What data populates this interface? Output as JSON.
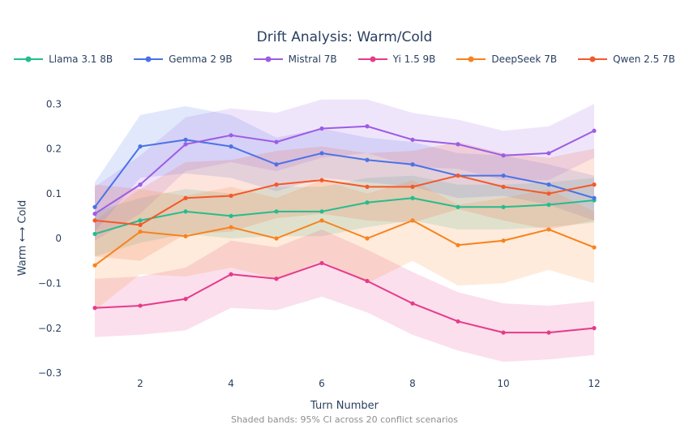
{
  "colors": {
    "text": "#2a3f5f",
    "note_text": "#8e8e93",
    "background": "#ffffff"
  },
  "chart_data": {
    "type": "line",
    "title": "Drift Analysis: Warm/Cold",
    "xlabel": "Turn Number",
    "ylabel": "Warm ⟷ Cold",
    "note": "Shaded bands: 95% CI across 20 conflict scenarios",
    "grid": false,
    "legend_position": "top-center",
    "band_meaning": "95% CI across 20 conflict scenarios",
    "x": [
      1,
      2,
      3,
      4,
      5,
      6,
      7,
      8,
      9,
      10,
      11,
      12
    ],
    "xlim": [
      0.5,
      12.5
    ],
    "ylim": [
      -0.32,
      0.33
    ],
    "xticks": [
      {
        "value": 2,
        "label": "2"
      },
      {
        "value": 4,
        "label": "4"
      },
      {
        "value": 6,
        "label": "6"
      },
      {
        "value": 8,
        "label": "8"
      },
      {
        "value": 10,
        "label": "10"
      },
      {
        "value": 12,
        "label": "12"
      }
    ],
    "yticks": [
      {
        "value": 0.3,
        "label": "0.3"
      },
      {
        "value": 0.2,
        "label": "0.2"
      },
      {
        "value": 0.1,
        "label": "0.1"
      },
      {
        "value": 0,
        "label": "0"
      },
      {
        "value": -0.1,
        "label": "−0.1"
      },
      {
        "value": -0.2,
        "label": "−0.2"
      },
      {
        "value": -0.3,
        "label": "−0.3"
      }
    ],
    "series": [
      {
        "name": "Llama 3.1 8B",
        "color": "#23bd8e",
        "values": [
          0.01,
          0.04,
          0.06,
          0.05,
          0.06,
          0.06,
          0.08,
          0.09,
          0.07,
          0.07,
          0.075,
          0.085
        ],
        "ci_half_width": [
          0.05,
          0.05,
          0.05,
          0.05,
          0.055,
          0.055,
          0.055,
          0.05,
          0.05,
          0.05,
          0.05,
          0.05
        ]
      },
      {
        "name": "Gemma 2 9B",
        "color": "#4a72e8",
        "values": [
          0.07,
          0.205,
          0.22,
          0.205,
          0.165,
          0.19,
          0.175,
          0.165,
          0.14,
          0.14,
          0.12,
          0.09
        ],
        "ci_half_width": [
          0.055,
          0.07,
          0.075,
          0.07,
          0.06,
          0.055,
          0.05,
          0.05,
          0.05,
          0.045,
          0.045,
          0.05
        ]
      },
      {
        "name": "Mistral 7B",
        "color": "#9d5ce5",
        "values": [
          0.055,
          0.12,
          0.21,
          0.23,
          0.215,
          0.245,
          0.25,
          0.22,
          0.21,
          0.185,
          0.19,
          0.24
        ],
        "ci_half_width": [
          0.06,
          0.065,
          0.06,
          0.06,
          0.065,
          0.065,
          0.06,
          0.06,
          0.055,
          0.055,
          0.06,
          0.06
        ]
      },
      {
        "name": "Yi 1.5 9B",
        "color": "#e63a8a",
        "values": [
          -0.155,
          -0.15,
          -0.135,
          -0.08,
          -0.09,
          -0.055,
          -0.095,
          -0.145,
          -0.185,
          -0.21,
          -0.21,
          -0.2
        ],
        "ci_half_width": [
          0.065,
          0.065,
          0.07,
          0.075,
          0.07,
          0.075,
          0.07,
          0.07,
          0.065,
          0.065,
          0.06,
          0.06
        ]
      },
      {
        "name": "DeepSeek 7B",
        "color": "#f8821d",
        "values": [
          -0.06,
          0.015,
          0.005,
          0.025,
          0.0,
          0.04,
          0.0,
          0.04,
          -0.015,
          -0.005,
          0.02,
          -0.02
        ],
        "ci_half_width": [
          0.1,
          0.095,
          0.09,
          0.09,
          0.09,
          0.09,
          0.1,
          0.09,
          0.09,
          0.095,
          0.09,
          0.08
        ]
      },
      {
        "name": "Qwen 2.5 7B",
        "color": "#f2592b",
        "values": [
          0.04,
          0.03,
          0.09,
          0.095,
          0.12,
          0.13,
          0.115,
          0.115,
          0.14,
          0.115,
          0.1,
          0.12
        ],
        "ci_half_width": [
          0.08,
          0.08,
          0.08,
          0.08,
          0.075,
          0.075,
          0.075,
          0.08,
          0.075,
          0.075,
          0.08,
          0.08
        ]
      }
    ]
  }
}
